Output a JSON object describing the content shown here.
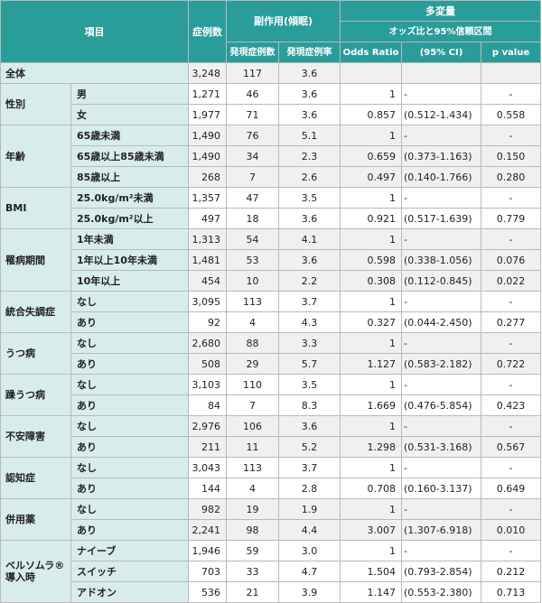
{
  "header": {
    "item": "項目",
    "cases": "症例数",
    "adverse": "副作用(傾眠)",
    "adverse_count": "発現症例数",
    "adverse_rate": "発現症例率",
    "multivariate": "多変量",
    "or_ci": "オッズ比と95%信頼区間",
    "odds_ratio": "Odds Ratio",
    "ci95": "(95% CI)",
    "p_value": "p value"
  },
  "rows": [
    {
      "group": "全体",
      "label": "",
      "cases": "3,248",
      "count": "117",
      "rate": "3.6",
      "or": "",
      "ci": "",
      "p": ""
    },
    {
      "group": "性別",
      "label": "男",
      "cases": "1,271",
      "count": "46",
      "rate": "3.6",
      "or": "1",
      "ci": "-",
      "p": "-"
    },
    {
      "group": "",
      "label": "女",
      "cases": "1,977",
      "count": "71",
      "rate": "3.6",
      "or": "0.857",
      "ci": "(0.512-1.434)",
      "p": "0.558"
    },
    {
      "group": "年齢",
      "label": "65歳未満",
      "cases": "1,490",
      "count": "76",
      "rate": "5.1",
      "or": "1",
      "ci": "-",
      "p": "-"
    },
    {
      "group": "",
      "label": "65歳以上85歳未満",
      "cases": "1,490",
      "count": "34",
      "rate": "2.3",
      "or": "0.659",
      "ci": "(0.373-1.163)",
      "p": "0.150"
    },
    {
      "group": "",
      "label": "85歳以上",
      "cases": "268",
      "count": "7",
      "rate": "2.6",
      "or": "0.497",
      "ci": "(0.140-1.766)",
      "p": "0.280"
    },
    {
      "group": "BMI",
      "label": "25.0kg/m²未満",
      "cases": "1,357",
      "count": "47",
      "rate": "3.5",
      "or": "1",
      "ci": "-",
      "p": "-"
    },
    {
      "group": "",
      "label": "25.0kg/m²以上",
      "cases": "497",
      "count": "18",
      "rate": "3.6",
      "or": "0.921",
      "ci": "(0.517-1.639)",
      "p": "0.779"
    },
    {
      "group": "罹病期間",
      "label": "1年未満",
      "cases": "1,313",
      "count": "54",
      "rate": "4.1",
      "or": "1",
      "ci": "-",
      "p": "-"
    },
    {
      "group": "",
      "label": "1年以上10年未満",
      "cases": "1,481",
      "count": "53",
      "rate": "3.6",
      "or": "0.598",
      "ci": "(0.338-1.056)",
      "p": "0.076"
    },
    {
      "group": "",
      "label": "10年以上",
      "cases": "454",
      "count": "10",
      "rate": "2.2",
      "or": "0.308",
      "ci": "(0.112-0.845)",
      "p": "0.022"
    },
    {
      "group": "統合失調症",
      "label": "なし",
      "cases": "3,095",
      "count": "113",
      "rate": "3.7",
      "or": "1",
      "ci": "-",
      "p": "-"
    },
    {
      "group": "",
      "label": "あり",
      "cases": "92",
      "count": "4",
      "rate": "4.3",
      "or": "0.327",
      "ci": "(0.044-2.450)",
      "p": "0.277"
    },
    {
      "group": "うつ病",
      "label": "なし",
      "cases": "2,680",
      "count": "88",
      "rate": "3.3",
      "or": "1",
      "ci": "-",
      "p": "-"
    },
    {
      "group": "",
      "label": "あり",
      "cases": "508",
      "count": "29",
      "rate": "5.7",
      "or": "1.127",
      "ci": "(0.583-2.182)",
      "p": "0.722"
    },
    {
      "group": "躁うつ病",
      "label": "なし",
      "cases": "3,103",
      "count": "110",
      "rate": "3.5",
      "or": "1",
      "ci": "-",
      "p": "-"
    },
    {
      "group": "",
      "label": "あり",
      "cases": "84",
      "count": "7",
      "rate": "8.3",
      "or": "1.669",
      "ci": "(0.476-5.854)",
      "p": "0.423"
    },
    {
      "group": "不安障害",
      "label": "なし",
      "cases": "2,976",
      "count": "106",
      "rate": "3.6",
      "or": "1",
      "ci": "-",
      "p": "-"
    },
    {
      "group": "",
      "label": "あり",
      "cases": "211",
      "count": "11",
      "rate": "5.2",
      "or": "1.298",
      "ci": "(0.531-3.168)",
      "p": "0.567"
    },
    {
      "group": "認知症",
      "label": "なし",
      "cases": "3,043",
      "count": "113",
      "rate": "3.7",
      "or": "1",
      "ci": "-",
      "p": "-"
    },
    {
      "group": "",
      "label": "あり",
      "cases": "144",
      "count": "4",
      "rate": "2.8",
      "or": "0.708",
      "ci": "(0.160-3.137)",
      "p": "0.649"
    },
    {
      "group": "併用薬",
      "label": "なし",
      "cases": "982",
      "count": "19",
      "rate": "1.9",
      "or": "1",
      "ci": "-",
      "p": "-"
    },
    {
      "group": "",
      "label": "あり",
      "cases": "2,241",
      "count": "98",
      "rate": "4.4",
      "or": "3.007",
      "ci": "(1.307-6.918)",
      "p": "0.010"
    },
    {
      "group": "ベルソムラ®\n導入時",
      "label": "ナイーブ",
      "cases": "1,946",
      "count": "59",
      "rate": "3.0",
      "or": "1",
      "ci": "-",
      "p": "-"
    },
    {
      "group": "",
      "label": "スイッチ",
      "cases": "703",
      "count": "33",
      "rate": "4.7",
      "or": "1.504",
      "ci": "(0.793-2.854)",
      "p": "0.212"
    },
    {
      "group": "",
      "label": "アドオン",
      "cases": "536",
      "count": "21",
      "rate": "3.9",
      "or": "1.147",
      "ci": "(0.553-2.380)",
      "p": "0.713"
    }
  ],
  "colors": {
    "header": "#2a9d9a",
    "label_bg": "#d9ecec",
    "alt_row": "#f0f0f0",
    "border": "#b9b9b9"
  }
}
